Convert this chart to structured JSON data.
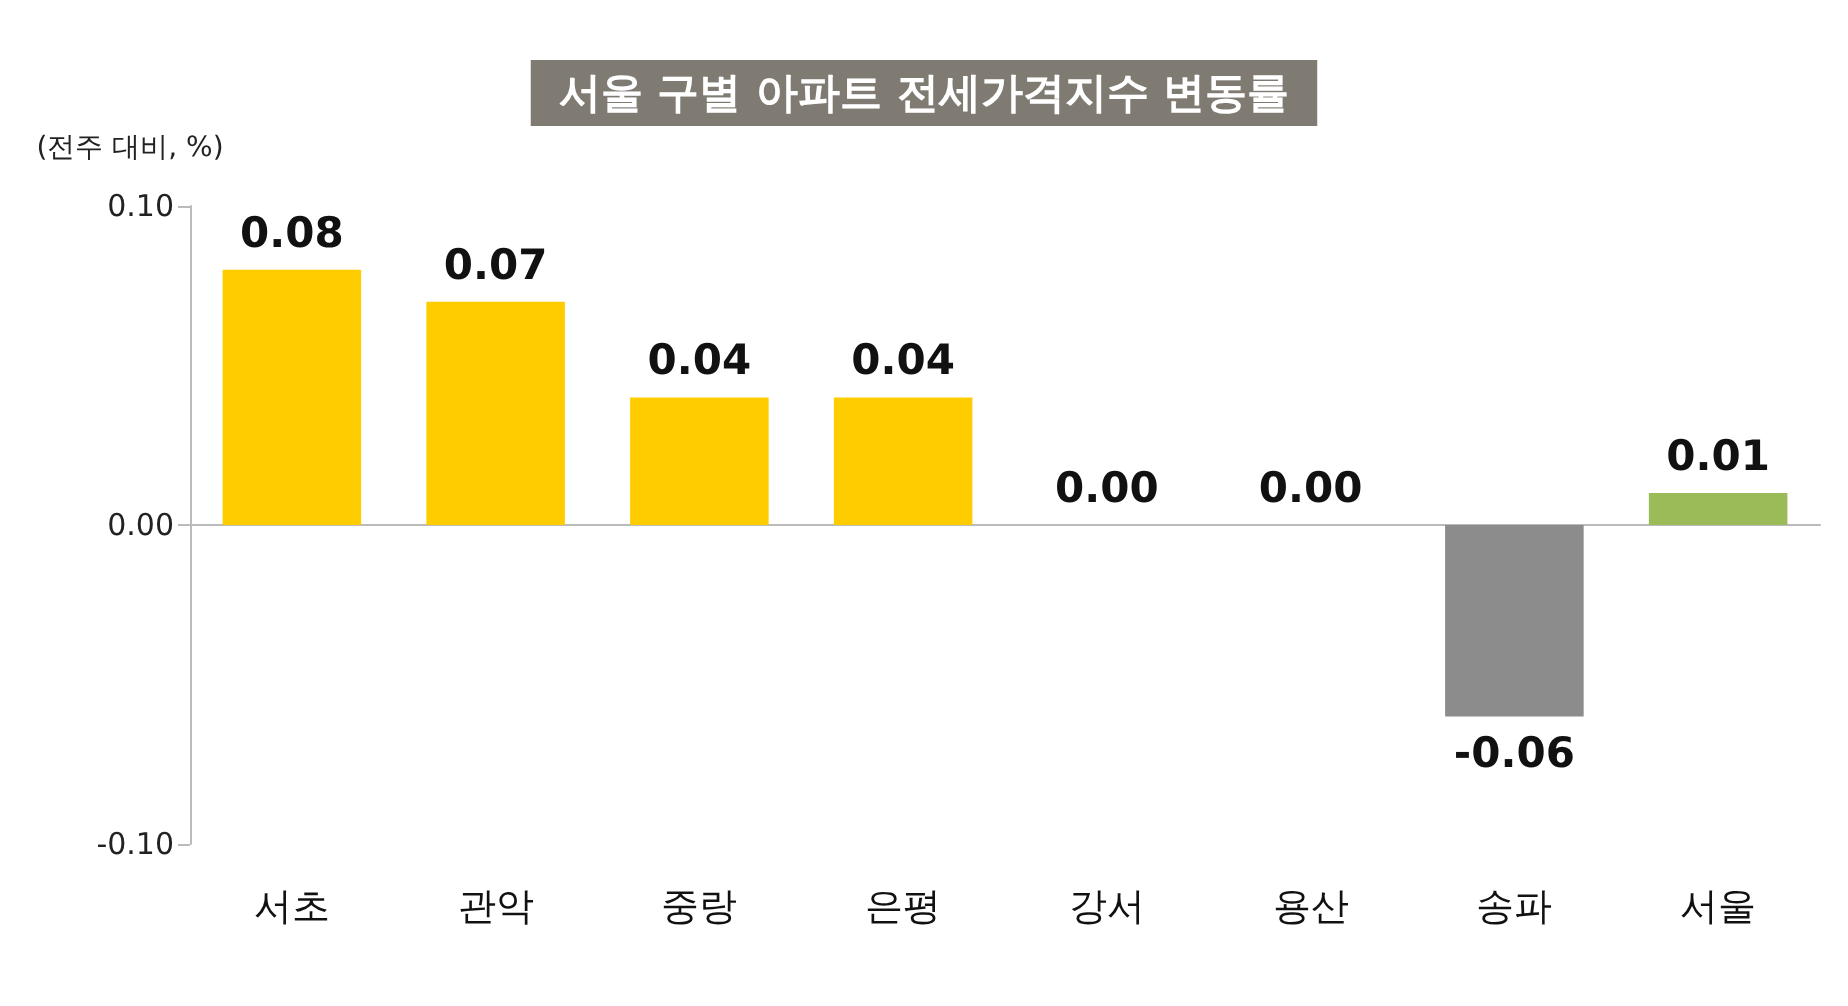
{
  "chart_data": {
    "type": "bar",
    "title": "서울 구별 아파트 전세가격지수 변동률",
    "ylabel": "(전주 대비, %)",
    "categories": [
      "서초",
      "관악",
      "중랑",
      "은평",
      "강서",
      "용산",
      "송파",
      "서울"
    ],
    "values": [
      0.08,
      0.07,
      0.04,
      0.04,
      0.0,
      0.0,
      -0.06,
      0.01
    ],
    "value_labels": [
      "0.08",
      "0.07",
      "0.04",
      "0.04",
      "0.00",
      "0.00",
      "-0.06",
      "0.01"
    ],
    "colors": [
      "#ffcc00",
      "#ffcc00",
      "#ffcc00",
      "#ffcc00",
      "#ffcc00",
      "#ffcc00",
      "#8c8c8c",
      "#9bbb59"
    ],
    "ylim": [
      -0.1,
      0.1
    ],
    "yticks": [
      {
        "value": -0.1,
        "label": "-0.10"
      },
      {
        "value": 0,
        "label": "0.00"
      },
      {
        "value": 0.1,
        "label": "0.10"
      }
    ]
  }
}
